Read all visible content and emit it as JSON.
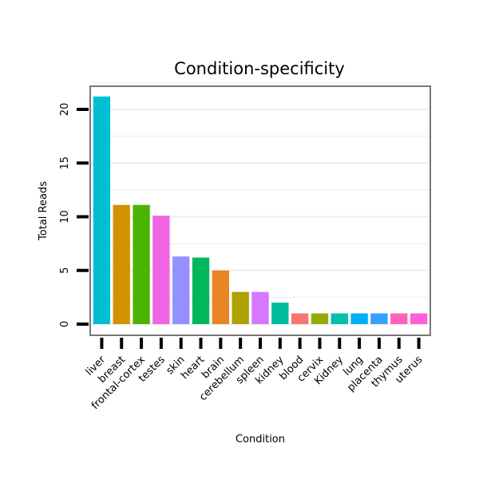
{
  "chart_data": {
    "type": "bar",
    "title": "Condition-specificity",
    "xlabel": "Condition",
    "ylabel": "Total Reads",
    "ylim": [
      -0.8,
      22.5
    ],
    "yticks": [
      0,
      5,
      10,
      15,
      20
    ],
    "grid": true,
    "categories": [
      "liver",
      "breast",
      "frontal-cortex",
      "testes",
      "skin",
      "heart",
      "brain",
      "cerebellum",
      "spleen",
      "kidney",
      "blood",
      "cervix",
      "Kidney",
      "lung",
      "placenta",
      "thymus",
      "uterus"
    ],
    "values": [
      21.2,
      11.1,
      11.1,
      10.1,
      6.3,
      6.2,
      5.0,
      3.0,
      3.0,
      2.0,
      1.0,
      1.0,
      1.0,
      1.0,
      1.0,
      1.0,
      1.0
    ],
    "colors": [
      "#00BFD3",
      "#D39200",
      "#4CB400",
      "#F065E6",
      "#9590FF",
      "#00B85B",
      "#E88526",
      "#ADA200",
      "#D776FF",
      "#00BB9E",
      "#F8766D",
      "#93AA00",
      "#00C1AA",
      "#00B0F6",
      "#35A2FF",
      "#FF62BC",
      "#FC61D5"
    ]
  }
}
